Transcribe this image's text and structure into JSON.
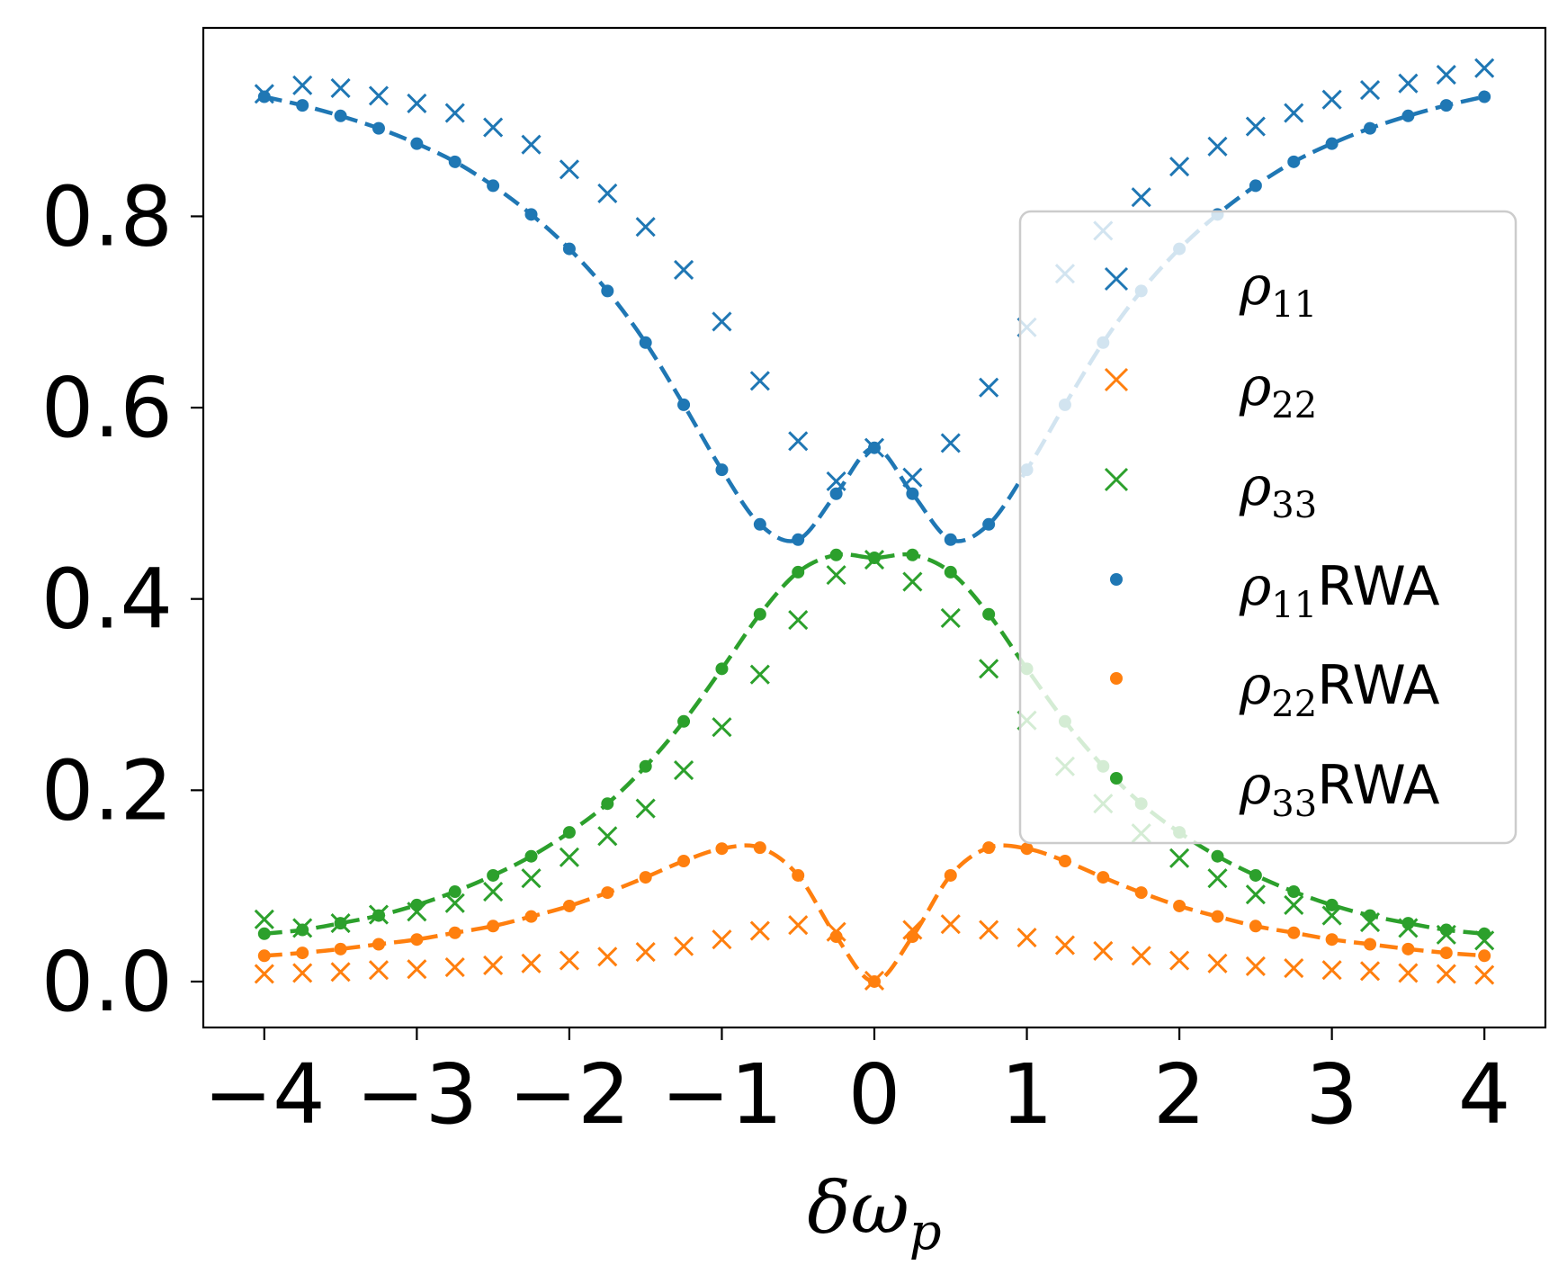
{
  "chart_data": {
    "type": "scatter",
    "title": "",
    "xlabel": "δω",
    "xlabel_sub": "p",
    "ylabel": "",
    "xlim": [
      -4.4,
      4.4
    ],
    "ylim": [
      -0.048,
      0.997
    ],
    "grid": false,
    "legend_position": "center-right",
    "x_ticks": [
      -4,
      -3,
      -2,
      -1,
      0,
      1,
      2,
      3,
      4
    ],
    "x_tick_labels": [
      "−4",
      "−3",
      "−2",
      "−1",
      "0",
      "1",
      "2",
      "3",
      "4"
    ],
    "y_ticks": [
      0.0,
      0.2,
      0.4,
      0.6,
      0.8
    ],
    "y_tick_labels": [
      "0.0",
      "0.2",
      "0.4",
      "0.6",
      "0.8"
    ],
    "x": [
      -4,
      -3.75,
      -3.5,
      -3.25,
      -3,
      -2.75,
      -2.5,
      -2.25,
      -2,
      -1.75,
      -1.5,
      -1.25,
      -1,
      -0.75,
      -0.5,
      -0.25,
      0,
      0.25,
      0.5,
      0.75,
      1,
      1.25,
      1.5,
      1.75,
      2,
      2.25,
      2.5,
      2.75,
      3,
      3.25,
      3.5,
      3.75,
      4
    ],
    "series": [
      {
        "name": "ρ11",
        "sym": "ρ",
        "sub": "11",
        "suffix": "",
        "marker": "x",
        "color": "#1f77b4",
        "values": [
          0.928,
          0.937,
          0.934,
          0.926,
          0.918,
          0.908,
          0.893,
          0.875,
          0.849,
          0.824,
          0.789,
          0.744,
          0.69,
          0.628,
          0.565,
          0.523,
          0.558,
          0.527,
          0.563,
          0.621,
          0.684,
          0.74,
          0.785,
          0.82,
          0.852,
          0.873,
          0.894,
          0.908,
          0.922,
          0.932,
          0.939,
          0.948,
          0.955
        ]
      },
      {
        "name": "ρ22",
        "sym": "ρ",
        "sub": "22",
        "suffix": "",
        "marker": "x",
        "color": "#ff7f0e",
        "values": [
          0.008,
          0.009,
          0.01,
          0.012,
          0.013,
          0.015,
          0.017,
          0.019,
          0.022,
          0.026,
          0.031,
          0.037,
          0.044,
          0.053,
          0.059,
          0.052,
          0.001,
          0.054,
          0.06,
          0.054,
          0.046,
          0.038,
          0.032,
          0.027,
          0.022,
          0.019,
          0.016,
          0.014,
          0.012,
          0.011,
          0.009,
          0.008,
          0.007
        ]
      },
      {
        "name": "ρ33",
        "sym": "ρ",
        "sub": "33",
        "suffix": "",
        "marker": "x",
        "color": "#2ca02c",
        "values": [
          0.065,
          0.056,
          0.061,
          0.07,
          0.073,
          0.082,
          0.094,
          0.108,
          0.13,
          0.152,
          0.181,
          0.221,
          0.266,
          0.321,
          0.378,
          0.425,
          0.441,
          0.418,
          0.38,
          0.327,
          0.273,
          0.225,
          0.186,
          0.155,
          0.129,
          0.108,
          0.091,
          0.08,
          0.069,
          0.062,
          0.056,
          0.049,
          0.043
        ]
      },
      {
        "name": "ρ11 RWA",
        "sym": "ρ",
        "sub": "11",
        "suffix": "RWA",
        "marker": "dot",
        "color": "#1f77b4",
        "values": [
          0.925,
          0.916,
          0.905,
          0.892,
          0.876,
          0.857,
          0.832,
          0.802,
          0.766,
          0.722,
          0.668,
          0.603,
          0.535,
          0.478,
          0.462,
          0.51,
          0.558,
          0.51,
          0.462,
          0.478,
          0.535,
          0.603,
          0.668,
          0.722,
          0.766,
          0.802,
          0.832,
          0.857,
          0.876,
          0.892,
          0.905,
          0.916,
          0.925
        ]
      },
      {
        "name": "ρ22 RWA",
        "sym": "ρ",
        "sub": "22",
        "suffix": "RWA",
        "marker": "dot",
        "color": "#ff7f0e",
        "values": [
          0.027,
          0.03,
          0.034,
          0.039,
          0.044,
          0.051,
          0.058,
          0.068,
          0.079,
          0.093,
          0.109,
          0.126,
          0.139,
          0.14,
          0.111,
          0.047,
          0.0,
          0.047,
          0.111,
          0.14,
          0.139,
          0.126,
          0.109,
          0.093,
          0.079,
          0.068,
          0.058,
          0.051,
          0.044,
          0.039,
          0.034,
          0.03,
          0.027
        ]
      },
      {
        "name": "ρ33 RWA",
        "sym": "ρ",
        "sub": "33",
        "suffix": "RWA",
        "marker": "dot",
        "color": "#2ca02c",
        "values": [
          0.05,
          0.054,
          0.061,
          0.069,
          0.08,
          0.094,
          0.111,
          0.131,
          0.156,
          0.186,
          0.225,
          0.272,
          0.327,
          0.384,
          0.428,
          0.446,
          0.443,
          0.446,
          0.428,
          0.384,
          0.327,
          0.272,
          0.225,
          0.186,
          0.156,
          0.131,
          0.111,
          0.094,
          0.08,
          0.069,
          0.061,
          0.054,
          0.05
        ]
      }
    ]
  }
}
